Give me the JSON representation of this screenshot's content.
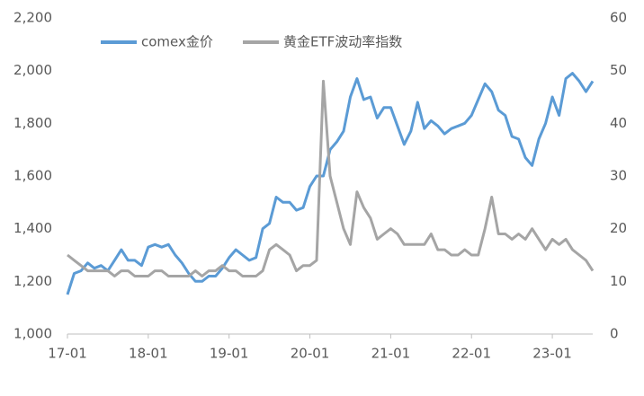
{
  "chart_data": {
    "type": "line",
    "categories": [
      "17-01",
      null,
      null,
      null,
      null,
      null,
      null,
      null,
      null,
      null,
      null,
      null,
      "18-01",
      null,
      null,
      null,
      null,
      null,
      null,
      null,
      null,
      null,
      null,
      null,
      "19-01",
      null,
      null,
      null,
      null,
      null,
      null,
      null,
      null,
      null,
      null,
      null,
      "20-01",
      null,
      null,
      null,
      null,
      null,
      null,
      null,
      null,
      null,
      null,
      null,
      "21-01",
      null,
      null,
      null,
      null,
      null,
      null,
      null,
      null,
      null,
      null,
      null,
      "22-01",
      null,
      null,
      null,
      null,
      null,
      null,
      null,
      null,
      null,
      null,
      null,
      "23-01",
      null,
      null,
      null,
      null,
      null,
      null
    ],
    "series": [
      {
        "name": "comex金价",
        "color": "#5b9bd5",
        "axis": "y",
        "values": [
          1150,
          1230,
          1240,
          1270,
          1250,
          1260,
          1240,
          1280,
          1320,
          1280,
          1280,
          1260,
          1330,
          1340,
          1330,
          1340,
          1300,
          1270,
          1230,
          1200,
          1200,
          1220,
          1220,
          1250,
          1290,
          1320,
          1300,
          1280,
          1290,
          1400,
          1420,
          1520,
          1500,
          1500,
          1470,
          1480,
          1560,
          1600,
          1600,
          1700,
          1730,
          1770,
          1900,
          1970,
          1890,
          1900,
          1820,
          1860,
          1860,
          1790,
          1720,
          1770,
          1880,
          1780,
          1810,
          1790,
          1760,
          1780,
          1790,
          1800,
          1830,
          1890,
          1950,
          1920,
          1850,
          1830,
          1750,
          1740,
          1670,
          1640,
          1740,
          1800,
          1900,
          1830,
          1970,
          1990,
          1960,
          1920,
          1960
        ]
      },
      {
        "name": "黄金ETF波动率指数",
        "color": "#a5a5a5",
        "axis": "y2",
        "values": [
          15,
          14,
          13,
          12,
          12,
          12,
          12,
          11,
          12,
          12,
          11,
          11,
          11,
          12,
          12,
          11,
          11,
          11,
          11,
          12,
          11,
          12,
          12,
          13,
          12,
          12,
          11,
          11,
          11,
          12,
          16,
          17,
          16,
          15,
          12,
          13,
          13,
          14,
          48,
          30,
          25,
          20,
          17,
          27,
          24,
          22,
          18,
          19,
          20,
          19,
          17,
          17,
          17,
          17,
          19,
          16,
          16,
          15,
          15,
          16,
          15,
          15,
          20,
          26,
          19,
          19,
          18,
          19,
          18,
          20,
          18,
          16,
          18,
          17,
          18,
          16,
          15,
          14,
          12
        ]
      }
    ],
    "ylim": [
      1000,
      2200
    ],
    "yticks": [
      {
        "value": 1000,
        "label": "1,000"
      },
      {
        "value": 1200,
        "label": "1,200"
      },
      {
        "value": 1400,
        "label": "1,400"
      },
      {
        "value": 1600,
        "label": "1,600"
      },
      {
        "value": 1800,
        "label": "1,800"
      },
      {
        "value": 2000,
        "label": "2,000"
      },
      {
        "value": 2200,
        "label": "2,200"
      }
    ],
    "y2lim": [
      0,
      60
    ],
    "y2ticks": [
      0,
      10,
      20,
      30,
      40,
      50,
      60
    ],
    "legend": "top"
  }
}
